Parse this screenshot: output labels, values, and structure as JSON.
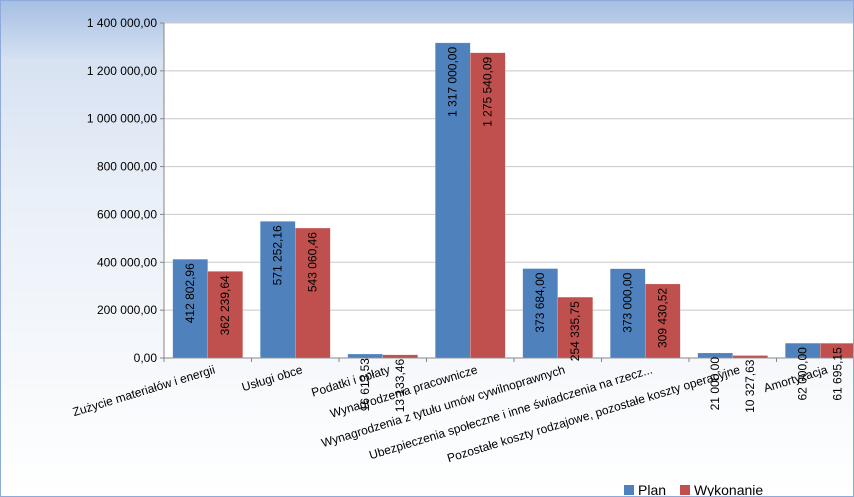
{
  "chart_data": {
    "type": "bar",
    "categories": [
      "Zużycie materiałów i energii",
      "Usługi obce",
      "Podatki i opłaty",
      "Wynagrodzenia pracownicze",
      "Wynagrodzenia z tytułu umów cywilnoprawnych",
      "Ubezpieczenia społeczne i inne świadczenia na rzecz...",
      "Pozostałe koszty rodzajowe, pozostałe koszty operacyjne",
      "Amortyzacja"
    ],
    "series": [
      {
        "name": "Plan",
        "color": "#4f81bd",
        "values": [
          412802.96,
          571252.16,
          16613.53,
          1317000.0,
          373684.0,
          373000.0,
          21000.0,
          62000.0
        ],
        "labels": [
          "412 802,96",
          "571 252,16",
          "16 613,53",
          "1 317 000,00",
          "373 684,00",
          "373 000,00",
          "21 000,00",
          "62 000,00"
        ]
      },
      {
        "name": "Wykonanie",
        "color": "#c0504d",
        "values": [
          362239.64,
          543060.46,
          13133.46,
          1275540.09,
          254335.75,
          309430.52,
          10327.63,
          61695.15
        ],
        "labels": [
          "362 239,64",
          "543 060,46",
          "13 133,46",
          "1 275 540,09",
          "254 335,75",
          "309 430,52",
          "10 327,63",
          "61 695,15"
        ]
      }
    ],
    "ylim": [
      0,
      1400000
    ],
    "yticks": [
      0,
      200000,
      400000,
      600000,
      800000,
      1000000,
      1200000,
      1400000
    ],
    "ytick_labels": [
      "0,00",
      "200 000,00",
      "400 000,00",
      "600 000,00",
      "800 000,00",
      "1 000 000,00",
      "1 200 000,00",
      "1 400 000,00"
    ],
    "grid": true,
    "legend_position": "bottom-right"
  }
}
